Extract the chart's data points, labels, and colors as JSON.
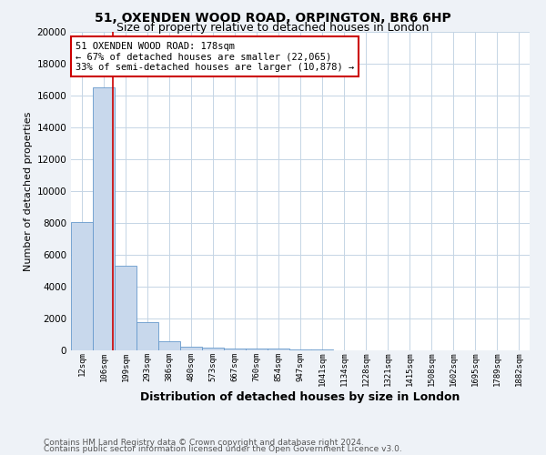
{
  "title": "51, OXENDEN WOOD ROAD, ORPINGTON, BR6 6HP",
  "subtitle": "Size of property relative to detached houses in London",
  "xlabel": "Distribution of detached houses by size in London",
  "ylabel": "Number of detached properties",
  "footnote1": "Contains HM Land Registry data © Crown copyright and database right 2024.",
  "footnote2": "Contains public sector information licensed under the Open Government Licence v3.0.",
  "annotation_title": "51 OXENDEN WOOD ROAD: 178sqm",
  "annotation_line2": "← 67% of detached houses are smaller (22,065)",
  "annotation_line3": "33% of semi-detached houses are larger (10,878) →",
  "bar_labels": [
    "12sqm",
    "106sqm",
    "199sqm",
    "293sqm",
    "386sqm",
    "480sqm",
    "573sqm",
    "667sqm",
    "760sqm",
    "854sqm",
    "947sqm",
    "1041sqm",
    "1134sqm",
    "1228sqm",
    "1321sqm",
    "1415sqm",
    "1508sqm",
    "1602sqm",
    "1695sqm",
    "1789sqm",
    "1882sqm"
  ],
  "bar_values": [
    8050,
    16500,
    5300,
    1800,
    550,
    250,
    150,
    100,
    100,
    120,
    50,
    30,
    20,
    10,
    5,
    5,
    5,
    5,
    5,
    5,
    5
  ],
  "bar_color": "#c8d8ec",
  "bar_edge_color": "#6699cc",
  "red_line_x": 1.43,
  "ylim": [
    0,
    20000
  ],
  "yticks": [
    0,
    2000,
    4000,
    6000,
    8000,
    10000,
    12000,
    14000,
    16000,
    18000,
    20000
  ],
  "background_color": "#eef2f7",
  "plot_bg_color": "#ffffff",
  "grid_color": "#c5d5e5",
  "annotation_box_color": "#ffffff",
  "annotation_border_color": "#cc0000",
  "red_line_color": "#cc0000",
  "title_fontsize": 10,
  "subtitle_fontsize": 9,
  "xlabel_fontsize": 9,
  "ylabel_fontsize": 8,
  "tick_fontsize": 6.5,
  "annotation_fontsize": 7.5,
  "footnote_fontsize": 6.5
}
